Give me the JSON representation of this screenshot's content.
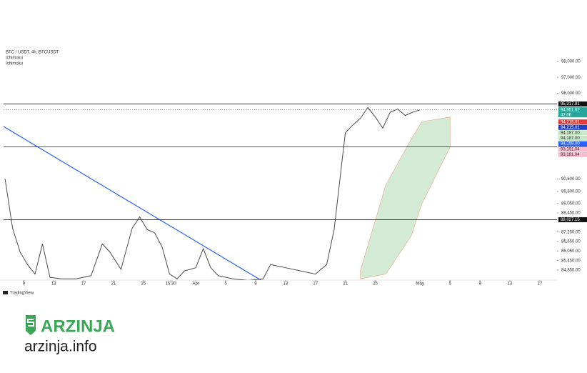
{
  "chart_data": {
    "type": "line",
    "title": "BTC / USDT, 4h, BTCUSDT",
    "indicators": [
      "Ichimoku",
      "Ichimoku"
    ],
    "xlim": [
      6.3,
      80.3
    ],
    "ylim": [
      84220,
      98810
    ],
    "xticks": [
      9,
      13,
      17,
      21,
      25,
      {
        "value": 28.65,
        "label": "15:30"
      },
      {
        "value": 32,
        "label": "Apr"
      },
      5,
      9,
      13,
      17,
      21,
      25,
      {
        "value": 62,
        "label": "May"
      },
      5,
      9,
      13,
      17
    ],
    "xtick_positions": [
      9,
      13,
      17,
      21,
      25,
      28.65,
      32,
      36,
      40,
      44,
      48,
      52,
      56,
      62,
      66,
      70,
      74,
      78
    ],
    "yticks": [
      {
        "value": 98000,
        "label": "98,000.00"
      },
      {
        "value": 97000,
        "label": "97,000.00"
      },
      {
        "value": 96000,
        "label": "96,000.00"
      },
      {
        "value": 90600,
        "label": "90,600.00"
      },
      {
        "value": 89800,
        "label": "89,800.00"
      },
      {
        "value": 89050,
        "label": "89,050.00"
      },
      {
        "value": 88450,
        "label": "88,450.00"
      },
      {
        "value": 87250,
        "label": "87,250.00"
      },
      {
        "value": 86650,
        "label": "86,650.00"
      },
      {
        "value": 86050,
        "label": "86,050.00"
      },
      {
        "value": 85450,
        "label": "85,450.00"
      },
      {
        "value": 84850,
        "label": "84,850.00"
      }
    ],
    "x": [
      6.5,
      7.5,
      8.5,
      9.5,
      10.5,
      11.5,
      12.5,
      14,
      16,
      18,
      19.5,
      20.5,
      22,
      23.5,
      24.5,
      25.5,
      26.5,
      27.5,
      28.5,
      29.5,
      30.5,
      32,
      33,
      34,
      35,
      37,
      39,
      41,
      42,
      44,
      46,
      48,
      49.5,
      50.5,
      51.5,
      52,
      53,
      54,
      55,
      56,
      57,
      58,
      59,
      60,
      61,
      62
    ],
    "series": [
      {
        "color": "#4a4a4a",
        "values": [
          90600,
          87500,
          86000,
          85200,
          84600,
          86500,
          84400,
          84300,
          84300,
          84500,
          86500,
          86000,
          84900,
          87500,
          88200,
          87400,
          87200,
          86300,
          84600,
          84300,
          84800,
          85000,
          86200,
          85000,
          84500,
          84300,
          84200,
          84300,
          85200,
          85000,
          84800,
          84600,
          85200,
          87400,
          91500,
          93500,
          94000,
          94400,
          95100,
          94500,
          93800,
          94800,
          95000,
          94600,
          94800,
          94951.62
        ]
      }
    ],
    "cloud": {
      "x": [
        54,
        57.4,
        60.8,
        62.2,
        66
      ],
      "upper": [
        84800,
        90200,
        93100,
        94200,
        94500
      ],
      "lower": [
        84300,
        84600,
        87000,
        89000,
        92600
      ],
      "color": "#c8e6c9"
    },
    "trendline": {
      "x": [
        6.3,
        40.7
      ],
      "y": [
        93900,
        84220
      ],
      "color": "#2962ff"
    },
    "levels": [
      {
        "value": 95317.81,
        "label": "95,317.81"
      },
      {
        "value": 92618.93,
        "label": "92,618.93"
      },
      {
        "value": 88027.15,
        "label": "88,027.15"
      }
    ],
    "last_price": {
      "value": 94951.62,
      "label": "94,951.62",
      "color": "#26a69a"
    },
    "countdown": "42:06",
    "price_labels": [
      {
        "value": 94215.01,
        "label": "94,215.01",
        "color": "#e53935"
      },
      {
        "value": 94215.01,
        "label": "94,215.01",
        "color": "#1e40c8"
      },
      {
        "value": 94187.0,
        "label": "94,187.00",
        "color": "#c8e6c9"
      },
      {
        "value": 94187.0,
        "label": "94,187.00",
        "color": "#c8e6c9"
      },
      {
        "value": 94159.0,
        "label": "94,159.00",
        "color": "#2962ff"
      },
      {
        "value": 93191.04,
        "label": "93,191.04",
        "color": "#f8bbd0"
      },
      {
        "value": 93191.04,
        "label": "93,191.04",
        "color": "#f8bbd0"
      }
    ]
  },
  "footer": {
    "platform": "TradingView"
  },
  "watermark": {
    "brand": "ARZINJA",
    "site": "arzinja.info"
  }
}
